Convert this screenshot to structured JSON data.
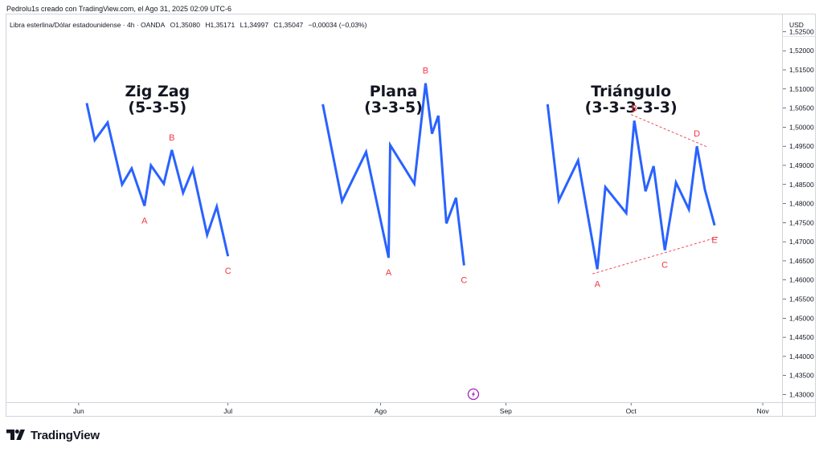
{
  "header": {
    "credit": "Pedrolu1s creado con TradingView.com, el Ago 31, 2025 02:09 UTC-6"
  },
  "legend": {
    "symbol": "Libra esterlina/Dólar estadounidense · 4h · OANDA",
    "open": "O1,35080",
    "high": "H1,35171",
    "low": "L1,34997",
    "close": "C1,35047",
    "change": "−0,00034 (−0,03%)"
  },
  "brand": {
    "name": "TradingView"
  },
  "colors": {
    "line": "#2962ff",
    "labels": "#f23645",
    "text": "#131722",
    "grid": "#d1d4dc"
  },
  "chart_data": {
    "type": "line",
    "currency": "USD",
    "y_ticks": [
      "1,52500",
      "1,52000",
      "1,51500",
      "1,51000",
      "1,50500",
      "1,50000",
      "1,49500",
      "1,49000",
      "1,48500",
      "1,48000",
      "1,47500",
      "1,47000",
      "1,46500",
      "1,46000",
      "1,45500",
      "1,45000",
      "1,44500",
      "1,44000",
      "1,43500",
      "1,43000"
    ],
    "ylim": [
      1.428,
      1.5295
    ],
    "x_ticks": [
      "Jun",
      "Jul",
      "Ago",
      "Sep",
      "Oct",
      "Nov"
    ],
    "patterns": [
      {
        "title": [
          "Zig Zag",
          "(5-3-5)"
        ],
        "x": [
          1.5,
          2.0,
          2.8,
          3.7,
          4.3,
          5.1,
          5.5,
          6.3,
          6.8,
          7.5,
          8.1,
          9.0,
          9.6,
          10.3
        ],
        "y": [
          1.5063,
          1.4966,
          1.5012,
          1.485,
          1.4892,
          1.4794,
          1.49,
          1.4852,
          1.494,
          1.4828,
          1.489,
          1.4718,
          1.4792,
          1.4662
        ],
        "labels": [
          {
            "text": "A",
            "i": 5,
            "pos": "below"
          },
          {
            "text": "B",
            "i": 8,
            "pos": "above"
          },
          {
            "text": "C",
            "i": 13,
            "pos": "below"
          }
        ]
      },
      {
        "title": [
          "Plana",
          "(3-3-5)"
        ],
        "x": [
          16.2,
          17.4,
          18.9,
          20.3,
          20.4,
          21.9,
          22.6,
          23.0,
          23.4,
          23.9,
          24.5,
          25.0
        ],
        "y": [
          1.506,
          1.4806,
          1.4935,
          1.4658,
          1.4953,
          1.4852,
          1.5115,
          1.4983,
          1.503,
          1.4748,
          1.4815,
          1.4638
        ],
        "labels": [
          {
            "text": "A",
            "i": 3,
            "pos": "below"
          },
          {
            "text": "B",
            "i": 6,
            "pos": "above"
          },
          {
            "text": "C",
            "i": 11,
            "pos": "below"
          }
        ]
      },
      {
        "title": [
          "Triángulo",
          "(3-3-3-3-3)"
        ],
        "x": [
          30.2,
          30.9,
          32.1,
          33.3,
          33.8,
          35.1,
          35.6,
          36.3,
          36.8,
          37.5,
          38.2,
          39.0,
          39.5,
          40.0,
          40.6
        ],
        "y": [
          1.506,
          1.4808,
          1.4913,
          1.4628,
          1.4843,
          1.4775,
          1.5017,
          1.4832,
          1.4898,
          1.4678,
          1.4855,
          1.4785,
          1.495,
          1.4836,
          1.4743
        ],
        "labels": [
          {
            "text": "A",
            "i": 3,
            "pos": "below"
          },
          {
            "text": "B",
            "i": 6,
            "pos": "above"
          },
          {
            "text": "C",
            "i": 9,
            "pos": "below"
          },
          {
            "text": "D",
            "i": 12,
            "pos": "above"
          },
          {
            "text": "E",
            "i": 14,
            "pos": "below"
          }
        ],
        "trendlines": [
          {
            "x": [
              35.4,
              40.1
            ],
            "y": [
              1.5033,
              1.4949
            ]
          },
          {
            "x": [
              33.0,
              40.8
            ],
            "y": [
              1.4616,
              1.4712
            ]
          }
        ]
      }
    ],
    "x_tick_positions": [
      1.0,
      10.3,
      19.8,
      27.6,
      35.4,
      43.6
    ],
    "xlim": [
      -3.5,
      44.8
    ]
  }
}
